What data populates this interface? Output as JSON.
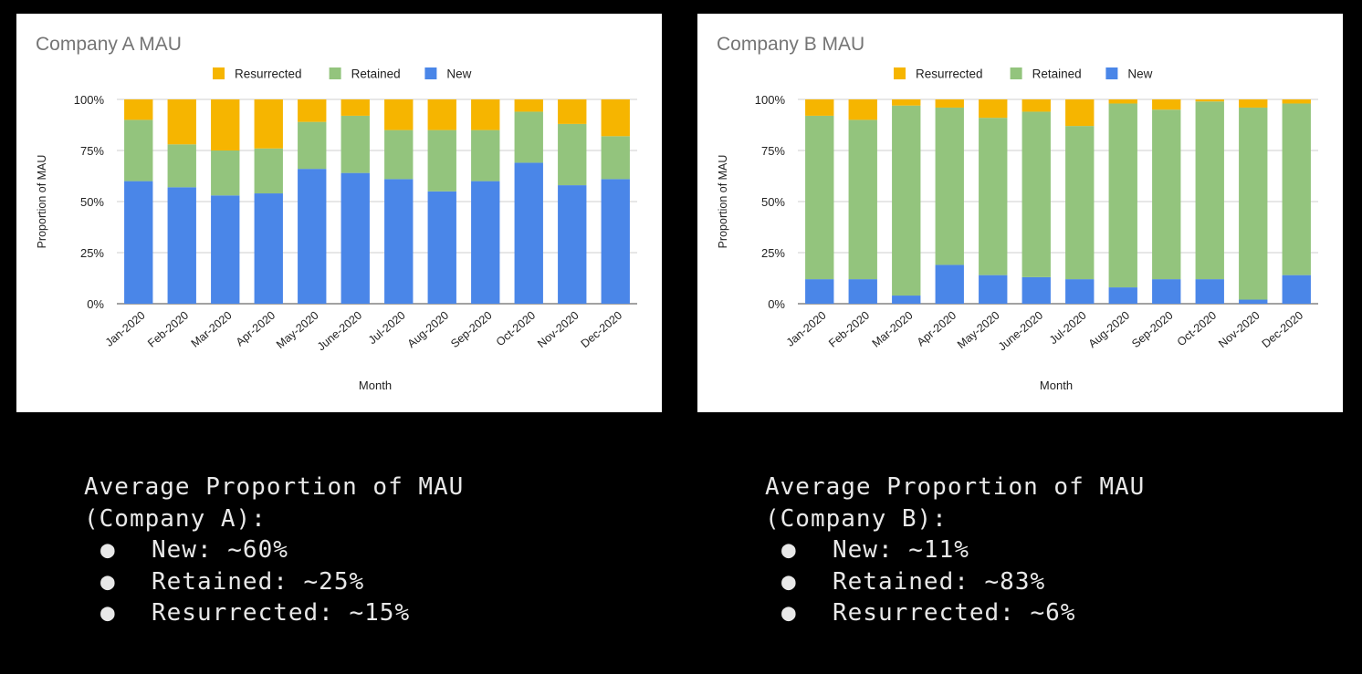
{
  "chart_data": [
    {
      "type": "bar",
      "stacked": true,
      "title": "Company A MAU",
      "xlabel": "Month",
      "ylabel": "Proportion of MAU",
      "ylim": [
        0,
        100
      ],
      "yticks": [
        "0%",
        "25%",
        "50%",
        "75%",
        "100%"
      ],
      "grid": true,
      "legend_position": "top",
      "categories": [
        "Jan-2020",
        "Feb-2020",
        "Mar-2020",
        "Apr-2020",
        "May-2020",
        "June-2020",
        "Jul-2020",
        "Aug-2020",
        "Sep-2020",
        "Oct-2020",
        "Nov-2020",
        "Dec-2020"
      ],
      "series": [
        {
          "name": "New",
          "color": "#4a86e8",
          "values": [
            60,
            57,
            53,
            54,
            66,
            64,
            61,
            55,
            60,
            69,
            58,
            61
          ]
        },
        {
          "name": "Retained",
          "color": "#93c47d",
          "values": [
            30,
            21,
            22,
            22,
            23,
            28,
            24,
            30,
            25,
            25,
            30,
            21
          ]
        },
        {
          "name": "Resurrected",
          "color": "#f6b500",
          "values": [
            10,
            22,
            25,
            24,
            11,
            8,
            15,
            15,
            15,
            6,
            12,
            18
          ]
        }
      ]
    },
    {
      "type": "bar",
      "stacked": true,
      "title": "Company B MAU",
      "xlabel": "Month",
      "ylabel": "Proportion of MAU",
      "ylim": [
        0,
        100
      ],
      "yticks": [
        "0%",
        "25%",
        "50%",
        "75%",
        "100%"
      ],
      "grid": true,
      "legend_position": "top",
      "categories": [
        "Jan-2020",
        "Feb-2020",
        "Mar-2020",
        "Apr-2020",
        "May-2020",
        "June-2020",
        "Jul-2020",
        "Aug-2020",
        "Sep-2020",
        "Oct-2020",
        "Nov-2020",
        "Dec-2020"
      ],
      "series": [
        {
          "name": "New",
          "color": "#4a86e8",
          "values": [
            12,
            12,
            4,
            19,
            14,
            13,
            12,
            8,
            12,
            12,
            2,
            14
          ]
        },
        {
          "name": "Retained",
          "color": "#93c47d",
          "values": [
            80,
            78,
            93,
            77,
            77,
            81,
            75,
            90,
            83,
            87,
            94,
            84
          ]
        },
        {
          "name": "Resurrected",
          "color": "#f6b500",
          "values": [
            8,
            10,
            3,
            4,
            9,
            6,
            13,
            2,
            5,
            1,
            4,
            2
          ]
        }
      ]
    }
  ],
  "summaries": [
    {
      "heading_line1": "Average Proportion of MAU",
      "heading_line2": "(Company A):",
      "items": [
        "New: ~60%",
        "Retained: ~25%",
        "Resurrected: ~15%"
      ]
    },
    {
      "heading_line1": "Average Proportion of MAU",
      "heading_line2": "(Company B):",
      "items": [
        "New: ~11%",
        "Retained: ~83%",
        "Resurrected: ~6%"
      ]
    }
  ],
  "bullet_glyph": "●"
}
